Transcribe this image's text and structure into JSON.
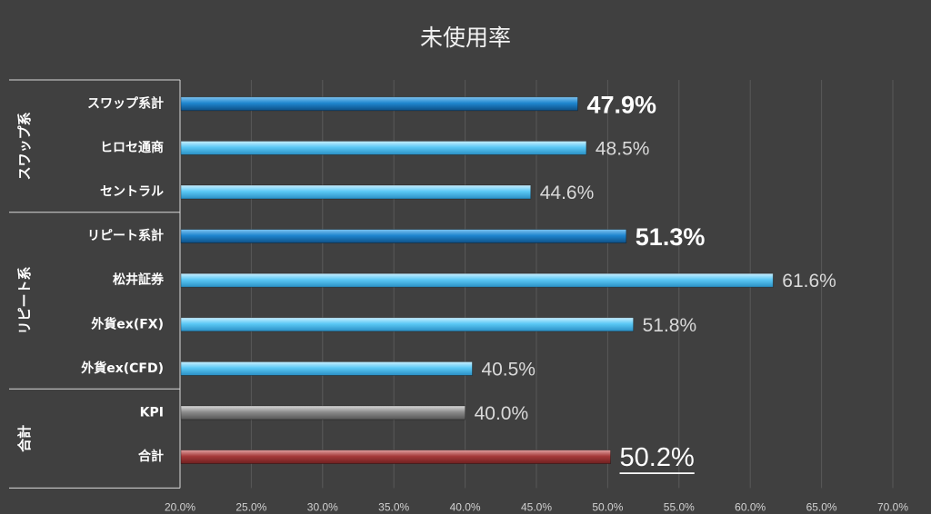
{
  "chart_data": {
    "type": "bar",
    "orientation": "horizontal",
    "title": "未使用率",
    "xlim": [
      0.2,
      0.7
    ],
    "xticks": [
      "20.0%",
      "25.0%",
      "30.0%",
      "35.0%",
      "40.0%",
      "45.0%",
      "50.0%",
      "55.0%",
      "60.0%",
      "65.0%",
      "70.0%"
    ],
    "grid": true,
    "groups": [
      {
        "label": "スワップ系",
        "items": [
          {
            "category": "スワップ系計",
            "value": 0.479,
            "label": "47.9%",
            "style": "subtotal"
          },
          {
            "category": "ヒロセ通商",
            "value": 0.485,
            "label": "48.5%",
            "style": "normal"
          },
          {
            "category": "セントラル",
            "value": 0.446,
            "label": "44.6%",
            "style": "normal"
          }
        ]
      },
      {
        "label": "リピート系",
        "items": [
          {
            "category": "リピート系計",
            "value": 0.513,
            "label": "51.3%",
            "style": "subtotal"
          },
          {
            "category": "松井証券",
            "value": 0.616,
            "label": "61.6%",
            "style": "normal"
          },
          {
            "category": "外貨ex(FX)",
            "value": 0.518,
            "label": "51.8%",
            "style": "normal"
          },
          {
            "category": "外貨ex(CFD)",
            "value": 0.405,
            "label": "40.5%",
            "style": "normal"
          }
        ]
      },
      {
        "label": "合計",
        "items": [
          {
            "category": "KPI",
            "value": 0.4,
            "label": "40.0%",
            "style": "kpi"
          },
          {
            "category": "合計",
            "value": 0.502,
            "label": "50.2%",
            "style": "total"
          }
        ]
      }
    ],
    "colors": {
      "background": "#404040",
      "grid": "#595959",
      "normal": "#5bc8f5",
      "subtotal": "#1f86cf",
      "kpi": "#8c8c8c",
      "total": "#a63a3a",
      "text": "#ffffff",
      "tick": "#d0d0d0"
    }
  }
}
